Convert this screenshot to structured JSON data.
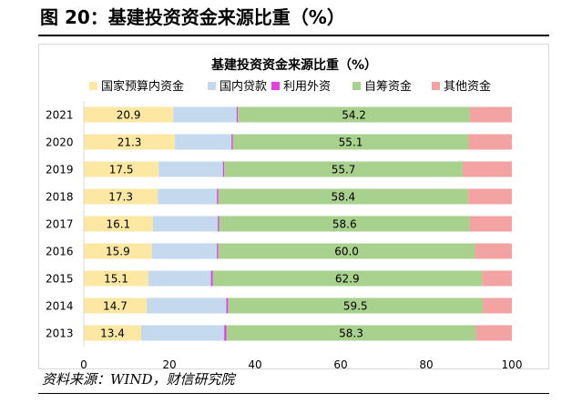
{
  "figure": {
    "title": "图 20：基建投资资金来源比重（%）",
    "source": "资料来源：WIND，财信研究院"
  },
  "chart_data": {
    "type": "bar",
    "orientation": "horizontal",
    "stacked": true,
    "title": "基建投资资金来源比重（%）",
    "categories": [
      "2021",
      "2020",
      "2019",
      "2018",
      "2017",
      "2016",
      "2015",
      "2014",
      "2013"
    ],
    "series": [
      {
        "name": "国家预算内资金",
        "color": "#fde8a3",
        "show_labels": true,
        "values": [
          20.9,
          21.3,
          17.5,
          17.3,
          16.1,
          15.9,
          15.1,
          14.7,
          13.4
        ]
      },
      {
        "name": "国内贷款",
        "color": "#c5d9ee",
        "show_labels": false,
        "values": [
          14.8,
          13.2,
          15.0,
          13.8,
          15.2,
          15.2,
          14.6,
          18.6,
          19.4
        ]
      },
      {
        "name": "利用外资",
        "color": "#e43ee4",
        "show_labels": false,
        "values": [
          0.3,
          0.3,
          0.3,
          0.3,
          0.3,
          0.3,
          0.4,
          0.4,
          0.5
        ]
      },
      {
        "name": "自筹资金",
        "color": "#a9d18e",
        "show_labels": true,
        "values": [
          54.2,
          55.1,
          55.7,
          58.4,
          58.6,
          60.0,
          62.9,
          59.5,
          58.3
        ]
      },
      {
        "name": "其他资金",
        "color": "#f4a3a3",
        "show_labels": false,
        "values": [
          9.8,
          10.1,
          11.5,
          10.2,
          9.8,
          8.6,
          7.0,
          6.8,
          8.4
        ]
      }
    ],
    "xlim": [
      0,
      100
    ],
    "x_ticks": [
      "0",
      "20",
      "40",
      "60",
      "80",
      "100"
    ],
    "legend_position": "top",
    "grid": false
  }
}
